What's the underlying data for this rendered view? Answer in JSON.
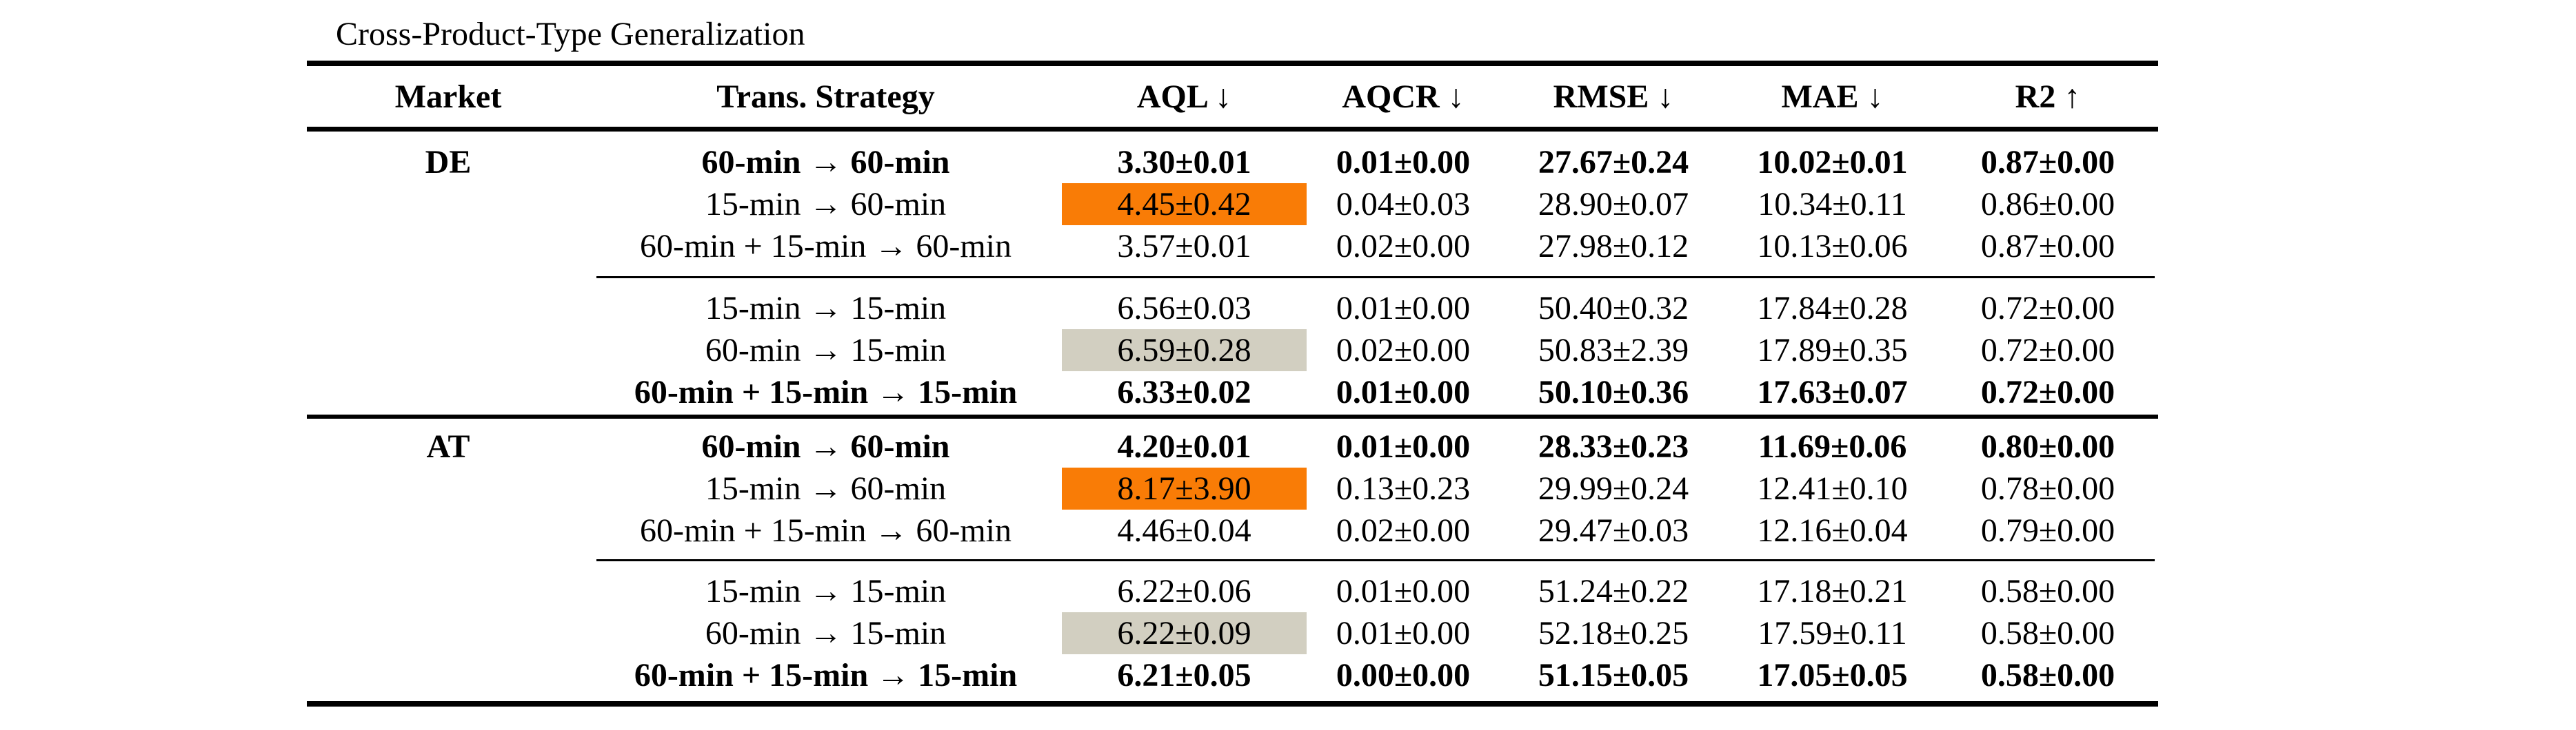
{
  "title": "Cross-Product-Type Generalization",
  "colors": {
    "highlight_orange": "#F97C06",
    "highlight_gray": "#D2CFC1",
    "rule_color": "#000000"
  },
  "columns": [
    {
      "label": "Market"
    },
    {
      "label": "Trans. Strategy"
    },
    {
      "label": "AQL ↓"
    },
    {
      "label": "AQCR ↓"
    },
    {
      "label": "RMSE ↓"
    },
    {
      "label": "MAE ↓"
    },
    {
      "label": "R2 ↑"
    }
  ],
  "groups": [
    {
      "market": "DE",
      "blocks": [
        {
          "rows": [
            {
              "strategy": "60-min → 60-min",
              "aql": "3.30±0.01",
              "aqcr": "0.01±0.00",
              "rmse": "27.67±0.24",
              "mae": "10.02±0.01",
              "r2": "0.87±0.00",
              "bold": true,
              "aql_highlight": null
            },
            {
              "strategy": "15-min → 60-min",
              "aql": "4.45±0.42",
              "aqcr": "0.04±0.03",
              "rmse": "28.90±0.07",
              "mae": "10.34±0.11",
              "r2": "0.86±0.00",
              "bold": false,
              "aql_highlight": "orange"
            },
            {
              "strategy": "60-min + 15-min → 60-min",
              "aql": "3.57±0.01",
              "aqcr": "0.02±0.00",
              "rmse": "27.98±0.12",
              "mae": "10.13±0.06",
              "r2": "0.87±0.00",
              "bold": false,
              "aql_highlight": null
            }
          ]
        },
        {
          "rows": [
            {
              "strategy": "15-min → 15-min",
              "aql": "6.56±0.03",
              "aqcr": "0.01±0.00",
              "rmse": "50.40±0.32",
              "mae": "17.84±0.28",
              "r2": "0.72±0.00",
              "bold": false,
              "aql_highlight": null
            },
            {
              "strategy": "60-min → 15-min",
              "aql": "6.59±0.28",
              "aqcr": "0.02±0.00",
              "rmse": "50.83±2.39",
              "mae": "17.89±0.35",
              "r2": "0.72±0.00",
              "bold": false,
              "aql_highlight": "gray"
            },
            {
              "strategy": "60-min + 15-min → 15-min",
              "aql": "6.33±0.02",
              "aqcr": "0.01±0.00",
              "rmse": "50.10±0.36",
              "mae": "17.63±0.07",
              "r2": "0.72±0.00",
              "bold": true,
              "aql_highlight": null
            }
          ]
        }
      ]
    },
    {
      "market": "AT",
      "blocks": [
        {
          "rows": [
            {
              "strategy": "60-min → 60-min",
              "aql": "4.20±0.01",
              "aqcr": "0.01±0.00",
              "rmse": "28.33±0.23",
              "mae": "11.69±0.06",
              "r2": "0.80±0.00",
              "bold": true,
              "aql_highlight": null
            },
            {
              "strategy": "15-min → 60-min",
              "aql": "8.17±3.90",
              "aqcr": "0.13±0.23",
              "rmse": "29.99±0.24",
              "mae": "12.41±0.10",
              "r2": "0.78±0.00",
              "bold": false,
              "aql_highlight": "orange"
            },
            {
              "strategy": "60-min + 15-min → 60-min",
              "aql": "4.46±0.04",
              "aqcr": "0.02±0.00",
              "rmse": "29.47±0.03",
              "mae": "12.16±0.04",
              "r2": "0.79±0.00",
              "bold": false,
              "aql_highlight": null
            }
          ]
        },
        {
          "rows": [
            {
              "strategy": "15-min → 15-min",
              "aql": "6.22±0.06",
              "aqcr": "0.01±0.00",
              "rmse": "51.24±0.22",
              "mae": "17.18±0.21",
              "r2": "0.58±0.00",
              "bold": false,
              "aql_highlight": null
            },
            {
              "strategy": "60-min → 15-min",
              "aql": "6.22±0.09",
              "aqcr": "0.01±0.00",
              "rmse": "52.18±0.25",
              "mae": "17.59±0.11",
              "r2": "0.58±0.00",
              "bold": false,
              "aql_highlight": "gray"
            },
            {
              "strategy": "60-min + 15-min → 15-min",
              "aql": "6.21±0.05",
              "aqcr": "0.00±0.00",
              "rmse": "51.15±0.05",
              "mae": "17.05±0.05",
              "r2": "0.58±0.00",
              "bold": true,
              "aql_highlight": null
            }
          ]
        }
      ]
    }
  ]
}
